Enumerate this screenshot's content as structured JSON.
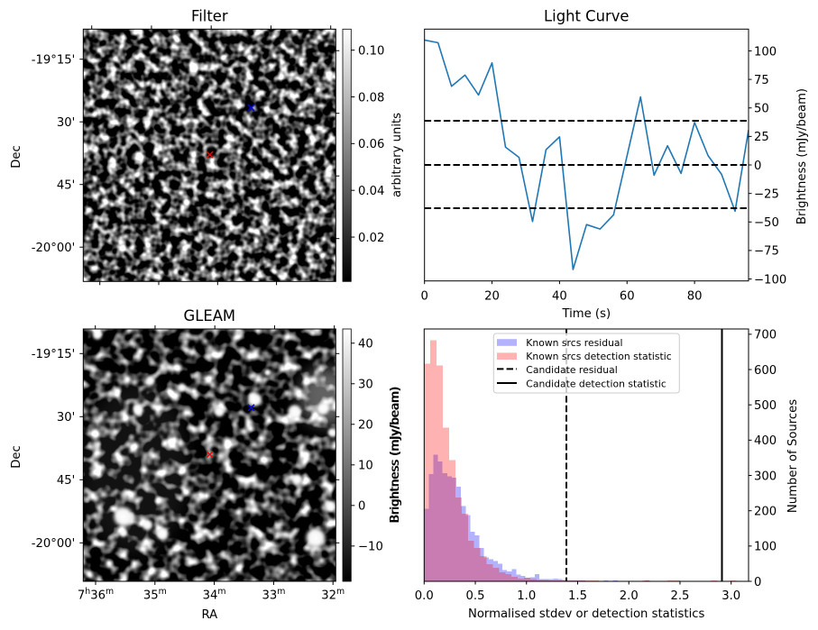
{
  "chart_data": [
    {
      "id": "filter",
      "type": "heatmap",
      "title": "Filter",
      "xlabel": "",
      "ylabel": "Dec",
      "cmap": "gray",
      "grid": false,
      "ra_range_7h_plus_min": [
        36.21,
        31.95
      ],
      "dec_range_deg": [
        -19.13,
        -20.14
      ],
      "ra_ticks_min": [
        36,
        35,
        34,
        33,
        32
      ],
      "dec_ticks_deg": [
        -19.25,
        -19.5,
        -19.75,
        -20.0
      ],
      "dec_tick_labels": [
        "-19°15'",
        "30'",
        "45'",
        "-20°00'"
      ],
      "colorbar": {
        "label": "arbitrary units",
        "range": [
          0.001,
          0.109
        ],
        "ticks": [
          0.02,
          0.04,
          0.06,
          0.08,
          0.1
        ],
        "tick_labels": [
          "0.02",
          "0.04",
          "0.06",
          "0.08",
          "0.10"
        ]
      },
      "markers": [
        {
          "symbol": "x",
          "color": "#ff0000",
          "ra_7h_plus_min": 34.076,
          "dec_deg": -19.65
        },
        {
          "symbol": "x",
          "color": "#0000ff",
          "ra_7h_plus_min": 33.379,
          "dec_deg": -19.464
        }
      ]
    },
    {
      "id": "light_curve",
      "type": "line",
      "title": "Light Curve",
      "xlabel": "Time (s)",
      "ylabel": "Brightness (mJy/beam)",
      "yaxis_side": "right",
      "grid": false,
      "x": [
        0,
        4,
        8,
        12,
        16,
        20,
        24,
        28,
        32,
        36,
        40,
        44,
        48,
        52,
        56,
        60,
        64,
        68,
        72,
        76,
        80,
        84,
        88,
        92,
        96
      ],
      "series": [
        {
          "name": "Light curve",
          "color": "#1f77b4",
          "values": [
            109.5,
            107.2,
            69.0,
            78.8,
            61.3,
            89.5,
            15.6,
            6.6,
            -49.6,
            13.4,
            24.6,
            -91.7,
            -52.3,
            -56.2,
            -43.8,
            8.0,
            59.6,
            -9.0,
            16.8,
            -7.4,
            37.2,
            8.2,
            -8.2,
            -40.6,
            30.6
          ]
        }
      ],
      "hlines": [
        {
          "y": 38.7,
          "style": "dashed",
          "color": "#000000"
        },
        {
          "y": 0.0,
          "style": "dashed",
          "color": "#000000"
        },
        {
          "y": -37.9,
          "style": "dashed",
          "color": "#000000"
        }
      ],
      "xlim": [
        0,
        96
      ],
      "ylim": [
        -101.7,
        119.1
      ],
      "xticks": [
        0,
        20,
        40,
        60,
        80
      ],
      "xtick_labels": [
        "0",
        "20",
        "40",
        "60",
        "80"
      ],
      "yticks": [
        -100,
        -75,
        -50,
        -25,
        0,
        25,
        50,
        75,
        100
      ],
      "ytick_labels": [
        "−100",
        "−75",
        "−50",
        "−25",
        "0",
        "25",
        "50",
        "75",
        "100"
      ]
    },
    {
      "id": "gleam",
      "type": "heatmap",
      "title": "GLEAM",
      "xlabel": "RA",
      "ylabel": "Dec",
      "cmap": "gray",
      "grid": false,
      "ra_range_7h_plus_min": [
        36.21,
        31.95
      ],
      "dec_range_deg": [
        -19.13,
        -20.14
      ],
      "ra_ticks_min": [
        36,
        35,
        34,
        33,
        32
      ],
      "ra_tick_labels": [
        [
          {
            "text": "7"
          },
          {
            "text": "h",
            "sup": true
          },
          {
            "text": "36"
          },
          {
            "text": "m",
            "sup": true
          }
        ],
        [
          {
            "text": "35"
          },
          {
            "text": "m",
            "sup": true
          }
        ],
        [
          {
            "text": "34"
          },
          {
            "text": "m",
            "sup": true
          }
        ],
        [
          {
            "text": "33"
          },
          {
            "text": "m",
            "sup": true
          }
        ],
        [
          {
            "text": "32"
          },
          {
            "text": "m",
            "sup": true
          }
        ]
      ],
      "dec_ticks_deg": [
        -19.25,
        -19.5,
        -19.75,
        -20.0
      ],
      "dec_tick_labels": [
        "-19°15'",
        "30'",
        "45'",
        "-20°00'"
      ],
      "colorbar": {
        "label": "Brightness (mJy/beam)",
        "range": [
          -18.7,
          43.5
        ],
        "ticks": [
          -10,
          0,
          10,
          20,
          30,
          40
        ],
        "tick_labels": [
          "−10",
          "0",
          "10",
          "20",
          "30",
          "40"
        ]
      },
      "markers": [
        {
          "symbol": "x",
          "color": "#ff0000",
          "ra_7h_plus_min": 34.076,
          "dec_deg": -19.65
        },
        {
          "symbol": "x",
          "color": "#0000ff",
          "ra_7h_plus_min": 33.379,
          "dec_deg": -19.464
        }
      ],
      "bright_sources": [
        {
          "ra_7h_plus_min": 35.97,
          "dec_deg": -19.176,
          "peak_mjy": 18
        },
        {
          "ra_7h_plus_min": 35.078,
          "dec_deg": -19.357,
          "peak_mjy": 18
        },
        {
          "ra_7h_plus_min": 34.546,
          "dec_deg": -19.385,
          "peak_mjy": 16
        },
        {
          "ra_7h_plus_min": 35.281,
          "dec_deg": -19.474,
          "peak_mjy": 22
        },
        {
          "ra_7h_plus_min": 33.913,
          "dec_deg": -19.48,
          "peak_mjy": 22
        },
        {
          "ra_7h_plus_min": 33.315,
          "dec_deg": -19.432,
          "peak_mjy": 45
        },
        {
          "ra_7h_plus_min": 32.646,
          "dec_deg": -19.48,
          "peak_mjy": 45
        },
        {
          "ra_7h_plus_min": 32.166,
          "dec_deg": -19.468,
          "peak_mjy": 32
        },
        {
          "ra_7h_plus_min": 33.102,
          "dec_deg": -19.325,
          "peak_mjy": 12
        },
        {
          "ra_7h_plus_min": 32.606,
          "dec_deg": -19.748,
          "peak_mjy": 22
        },
        {
          "ra_7h_plus_min": 32.038,
          "dec_deg": -19.855,
          "peak_mjy": 24
        },
        {
          "ra_7h_plus_min": 35.533,
          "dec_deg": -19.896,
          "peak_mjy": 250
        },
        {
          "ra_7h_plus_min": 35.129,
          "dec_deg": -19.929,
          "peak_mjy": 22
        },
        {
          "ra_7h_plus_min": 34.875,
          "dec_deg": -19.964,
          "peak_mjy": 32
        },
        {
          "ra_7h_plus_min": 35.533,
          "dec_deg": -19.962,
          "peak_mjy": 14
        },
        {
          "ra_7h_plus_min": 32.292,
          "dec_deg": -19.98,
          "peak_mjy": 250
        },
        {
          "ra_7h_plus_min": 32.014,
          "dec_deg": -19.563,
          "peak_mjy": 16
        }
      ]
    },
    {
      "id": "histogram",
      "type": "bar",
      "histogram": true,
      "title": "",
      "xlabel": "Normalised stdev or detection statistics",
      "ylabel_left": "Brightness (mJy/beam)",
      "ylabel_right": "Number of Sources",
      "grid": false,
      "series": [
        {
          "name": "Known srcs residual",
          "color": "#0000ff",
          "alpha": 0.3,
          "bin_start": 0.0,
          "bin_width": 0.045,
          "counts": [
            205,
            304,
            359,
            339,
            307,
            298,
            294,
            268,
            213,
            188,
            141,
            130,
            95,
            68,
            62,
            58,
            50,
            32,
            28,
            34,
            19,
            15,
            10,
            11,
            20,
            7,
            6,
            6,
            8,
            6,
            4,
            3,
            3,
            2,
            2,
            1,
            1,
            1,
            0,
            2,
            1,
            2,
            0,
            0,
            1,
            0,
            0,
            0,
            2,
            1
          ]
        },
        {
          "name": "Known srcs detection statistic",
          "color": "#ff0000",
          "alpha": 0.3,
          "bin_start": 0.0,
          "bin_width": 0.061,
          "counts": [
            617,
            683,
            612,
            435,
            343,
            238,
            192,
            115,
            94,
            72,
            48,
            38,
            26,
            21,
            13,
            8,
            10,
            7,
            4,
            4,
            3,
            3,
            2,
            2,
            2,
            3,
            3,
            2,
            1,
            1,
            1,
            1,
            0,
            0,
            1,
            2,
            0,
            0,
            0,
            2,
            2,
            0,
            0,
            0,
            0,
            0,
            2,
            0,
            0,
            2
          ]
        }
      ],
      "vlines": [
        {
          "name": "Candidate residual",
          "x": 1.39,
          "style": "dashed",
          "color": "#000000"
        },
        {
          "name": "Candidate detection statistic",
          "x": 2.91,
          "style": "solid",
          "color": "#000000"
        }
      ],
      "xlim": [
        0,
        3.17
      ],
      "ylim": [
        0,
        715
      ],
      "xticks": [
        0,
        0.5,
        1.0,
        1.5,
        2.0,
        2.5,
        3.0
      ],
      "xtick_labels": [
        "0.0",
        "0.5",
        "1.0",
        "1.5",
        "2.0",
        "2.5",
        "3.0"
      ],
      "yticks": [
        0,
        100,
        200,
        300,
        400,
        500,
        600,
        700
      ],
      "ytick_labels": [
        "0",
        "100",
        "200",
        "300",
        "400",
        "500",
        "600",
        "700"
      ],
      "legend": {
        "position": "upper center",
        "entries": [
          {
            "label": "Known srcs residual",
            "kind": "patch",
            "color": "#0000ff"
          },
          {
            "label": "Known srcs detection statistic",
            "kind": "patch",
            "color": "#ff0000"
          },
          {
            "label": "Candidate residual",
            "kind": "line",
            "style": "dashed"
          },
          {
            "label": "Candidate detection statistic",
            "kind": "line",
            "style": "solid"
          }
        ]
      }
    }
  ]
}
